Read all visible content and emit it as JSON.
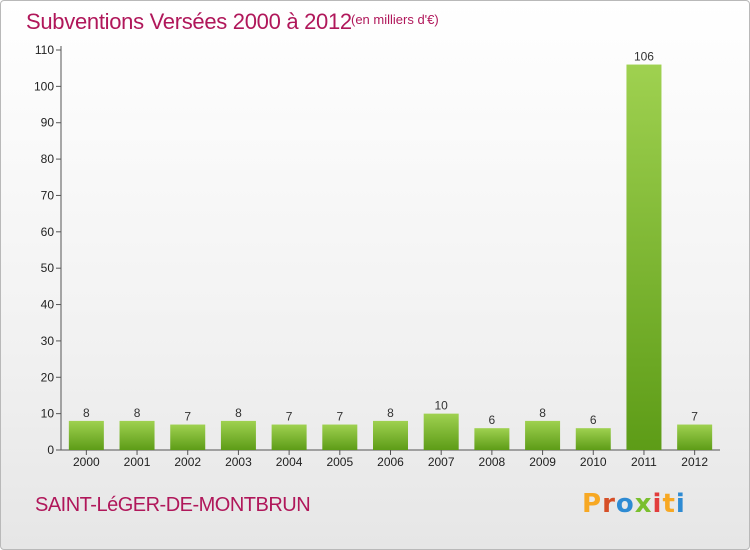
{
  "header": {
    "title": "Subventions Versées 2000 à 2012",
    "unit": "(en milliers d'€)"
  },
  "footer": {
    "commune": "SAINT-LéGER-DE-MONTBRUN",
    "logo_text": "Proxiti"
  },
  "colors": {
    "title": "#b0175a",
    "bar_light": "#9fd150",
    "bar_dark": "#5d9c17",
    "logo": [
      "#f7a823",
      "#d64f27",
      "#2e8bd3",
      "#7abf2e",
      "#e23c3c",
      "#f7a823",
      "#2e8bd3"
    ]
  },
  "chart_data": {
    "type": "bar",
    "categories": [
      "2000",
      "2001",
      "2002",
      "2003",
      "2004",
      "2005",
      "2006",
      "2007",
      "2008",
      "2009",
      "2010",
      "2011",
      "2012"
    ],
    "values": [
      8,
      8,
      7,
      8,
      7,
      7,
      8,
      10,
      6,
      8,
      6,
      106,
      7
    ],
    "yticks": [
      0,
      10,
      20,
      30,
      40,
      50,
      60,
      70,
      80,
      90,
      100,
      110
    ],
    "ylim": [
      0,
      110
    ],
    "title": "Subventions Versées 2000 à 2012",
    "ylabel": "",
    "xlabel": "",
    "grid": false,
    "data_labels": true
  }
}
